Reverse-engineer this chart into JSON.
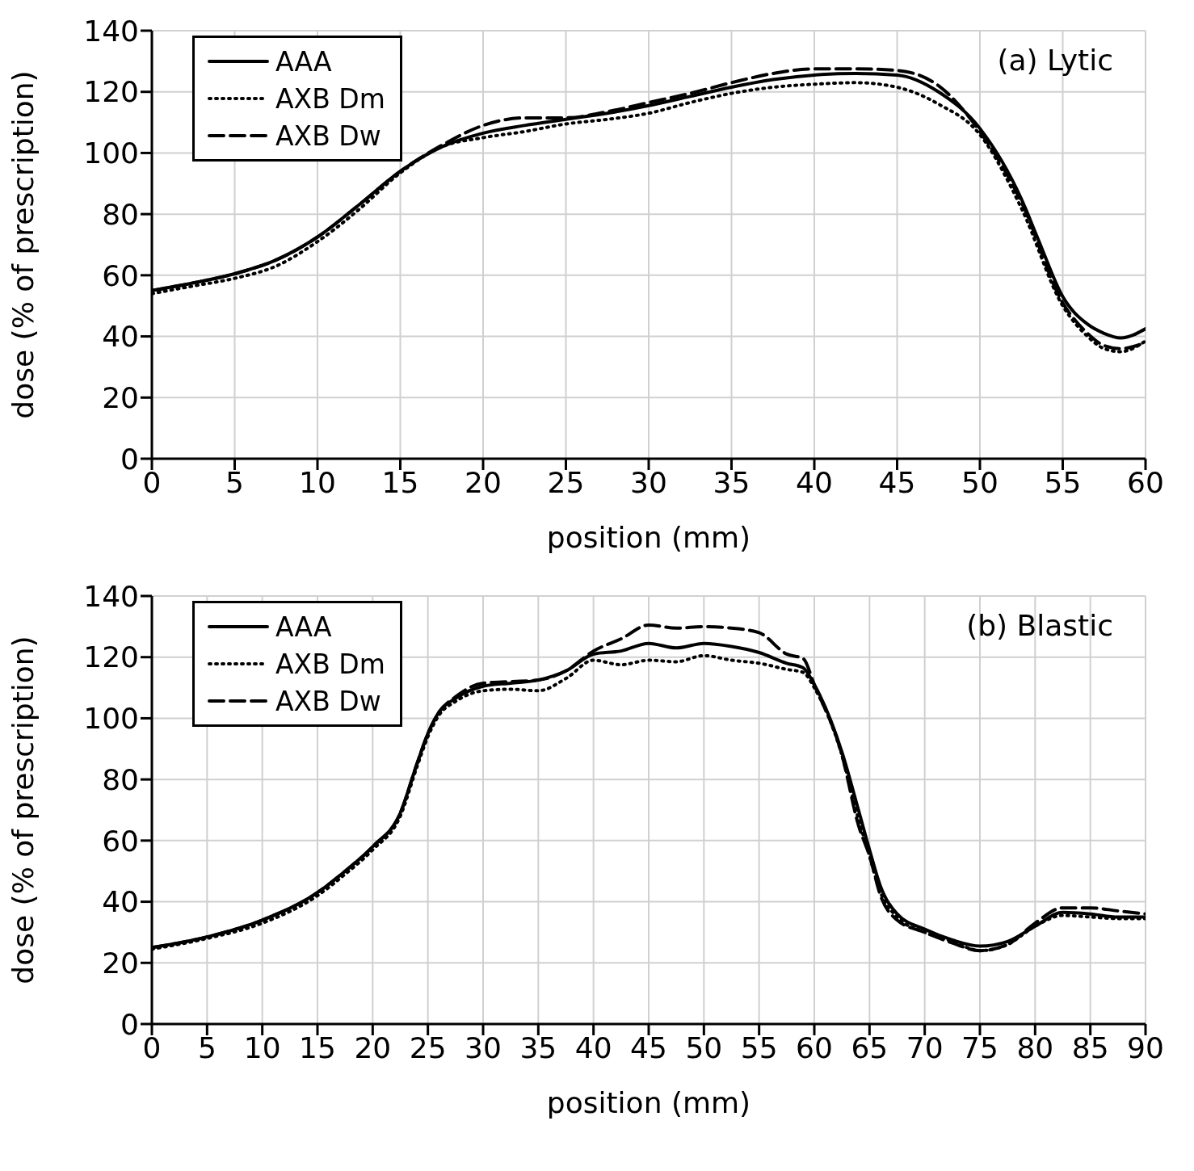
{
  "chart_data": [
    {
      "type": "line",
      "xlabel": "position (mm)",
      "ylabel": "dose (% of prescription)",
      "annotations": [
        "(a) Lytic"
      ],
      "xlim": [
        0,
        60
      ],
      "xticks": [
        0,
        5,
        10,
        15,
        20,
        25,
        30,
        35,
        40,
        45,
        50,
        55,
        60
      ],
      "ylim": [
        0,
        140
      ],
      "yticks": [
        0,
        20,
        40,
        60,
        80,
        100,
        120,
        140
      ],
      "grid": true,
      "legend": "top left",
      "marker": "none",
      "series": [
        {
          "name": "AAA",
          "color": "#000000",
          "line_style": "solid",
          "x": [
            0,
            2.5,
            5,
            7.5,
            10,
            12.5,
            15,
            17.5,
            20,
            22.5,
            25,
            27.5,
            30,
            32.5,
            35,
            37.5,
            40,
            42.5,
            45,
            47.5,
            50,
            52.5,
            53.5,
            55,
            56.5,
            57.5,
            58.5,
            60
          ],
          "values": [
            55,
            57.5,
            60.5,
            65,
            72.5,
            83,
            94,
            102,
            106.5,
            109,
            111,
            113,
            115.5,
            118.5,
            121.5,
            124,
            125.5,
            126,
            125.5,
            120,
            108,
            85,
            72,
            53,
            44,
            41,
            39.5,
            42.5
          ]
        },
        {
          "name": "AXB Dm",
          "color": "#000000",
          "line_style": "dotted",
          "x": [
            0,
            2.5,
            5,
            7.5,
            10,
            12.5,
            15,
            17.5,
            20,
            22.5,
            25,
            27.5,
            30,
            32.5,
            35,
            37.5,
            40,
            42.5,
            45,
            47.5,
            50,
            52.5,
            55,
            56.5,
            57.5,
            58.5,
            60
          ],
          "values": [
            54,
            56.5,
            59,
            63,
            71,
            81.5,
            93.5,
            102,
            105,
            107,
            109.5,
            111,
            113,
            116.5,
            119.5,
            121.5,
            122.5,
            123,
            121.5,
            116,
            106,
            82,
            50,
            40,
            36,
            35,
            38.5
          ]
        },
        {
          "name": "AXB Dw",
          "color": "#000000",
          "line_style": "dashed",
          "x": [
            0,
            2.5,
            5,
            7.5,
            10,
            12.5,
            15,
            17.5,
            20,
            22.5,
            25,
            27.5,
            30,
            32.5,
            35,
            37.5,
            40,
            42.5,
            45,
            47.5,
            50,
            52.5,
            55,
            56.5,
            57.5,
            58.5,
            60
          ],
          "values": [
            55,
            57.5,
            60.5,
            65,
            72.5,
            83,
            94,
            102.5,
            109,
            111.5,
            111.5,
            113.5,
            116.5,
            119.5,
            123,
            126,
            127.5,
            127.5,
            127,
            122,
            107,
            84,
            51,
            41,
            37,
            36,
            38
          ]
        }
      ]
    },
    {
      "type": "line",
      "xlabel": "position (mm)",
      "ylabel": "dose (% of prescription)",
      "annotations": [
        "(b) Blastic"
      ],
      "xlim": [
        0,
        90
      ],
      "xticks": [
        0,
        5,
        10,
        15,
        20,
        25,
        30,
        35,
        40,
        45,
        50,
        55,
        60,
        65,
        70,
        75,
        80,
        85,
        90
      ],
      "ylim": [
        0,
        140
      ],
      "yticks": [
        0,
        20,
        40,
        60,
        80,
        100,
        120,
        140
      ],
      "grid": true,
      "legend": "top left",
      "marker": "none",
      "series": [
        {
          "name": "AAA",
          "color": "#000000",
          "line_style": "solid",
          "x": [
            0,
            5,
            10,
            15,
            17.5,
            20,
            22.5,
            24,
            25,
            26,
            27.5,
            30,
            32.5,
            35,
            37.5,
            40,
            42.5,
            45,
            47.5,
            50,
            52.5,
            55,
            57.5,
            59,
            60,
            62.5,
            64,
            65,
            66,
            67.5,
            70,
            72.5,
            75,
            77.5,
            80,
            82.5,
            85,
            87.5,
            90
          ],
          "values": [
            25,
            28.5,
            34,
            43,
            50,
            58,
            69,
            85,
            95,
            102,
            106.5,
            110.5,
            111.5,
            112.5,
            115.5,
            121,
            122,
            124.5,
            123,
            124.5,
            123.5,
            121.5,
            118,
            116.5,
            111,
            89,
            70,
            57,
            45,
            36,
            31,
            27.5,
            25.5,
            27,
            32,
            36.5,
            36,
            35,
            35
          ]
        },
        {
          "name": "AXB Dm",
          "color": "#000000",
          "line_style": "dotted",
          "x": [
            0,
            5,
            10,
            15,
            17.5,
            20,
            22.5,
            24,
            25,
            26,
            27.5,
            30,
            32.5,
            35,
            37.5,
            40,
            42.5,
            45,
            47.5,
            50,
            52.5,
            55,
            57.5,
            59,
            60,
            62.5,
            64,
            65,
            66,
            67.5,
            70,
            72.5,
            75,
            77.5,
            80,
            82.5,
            85,
            87.5,
            90
          ],
          "values": [
            24.5,
            28,
            33,
            42,
            49,
            57,
            68,
            84,
            94,
            101,
            105.5,
            109,
            109.5,
            109,
            113,
            119,
            117.5,
            119,
            118.5,
            120.5,
            119,
            118,
            116,
            115,
            110,
            88,
            67,
            55,
            43,
            35,
            30,
            27,
            24,
            26,
            32,
            35.5,
            35,
            34.5,
            34.5
          ]
        },
        {
          "name": "AXB Dw",
          "color": "#000000",
          "line_style": "dashed",
          "x": [
            0,
            5,
            10,
            15,
            17.5,
            20,
            22.5,
            24,
            25,
            26,
            27.5,
            30,
            32.5,
            35,
            37.5,
            40,
            42.5,
            45,
            47.5,
            50,
            52.5,
            55,
            57.5,
            59,
            60,
            62.5,
            64,
            65,
            66,
            67.5,
            70,
            72.5,
            75,
            77.5,
            80,
            82.5,
            85,
            87.5,
            90
          ],
          "values": [
            25,
            28.5,
            34,
            43,
            50,
            58,
            69,
            85,
            95,
            102,
            107,
            111.5,
            112,
            112.5,
            115.5,
            122,
            126,
            130.5,
            129.5,
            130,
            129.5,
            128,
            121,
            119.5,
            111,
            88,
            65,
            55,
            42,
            34,
            30,
            26.5,
            24,
            26,
            33,
            38,
            38,
            37,
            36
          ]
        }
      ]
    }
  ]
}
